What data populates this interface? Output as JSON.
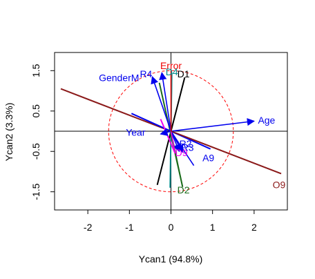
{
  "chart_data": {
    "type": "biplot",
    "xlabel": "Ycan1 (94.8%)",
    "ylabel": "Ycan2 (3.3%)",
    "xlim": [
      -2.8,
      2.8
    ],
    "ylim": [
      -1.95,
      1.95
    ],
    "xticks": [
      "-2",
      "-1",
      "0",
      "1",
      "2"
    ],
    "xtick_values": [
      -2,
      -1,
      0,
      1,
      2
    ],
    "yticks": [
      "-1.5",
      "-0.5",
      "0.5",
      "1.5"
    ],
    "ytick_values": [
      -1.5,
      -0.5,
      0.5,
      1.5
    ],
    "circle": {
      "center": [
        0,
        0
      ],
      "radius": 1.5,
      "color": "#ff0000",
      "style": "dashed"
    },
    "reference_lines": {
      "x": 0,
      "y": 0
    },
    "vectors": [
      {
        "label": "Age",
        "x": 2.0,
        "y": 0.25,
        "color": "#0000ee",
        "arrow": true
      },
      {
        "label": "Year",
        "x": -0.25,
        "y": -0.07,
        "color": "#0000ee",
        "arrow": true
      },
      {
        "label": "GenderM",
        "x": -0.45,
        "y": 1.35,
        "color": "#0000ee",
        "arrow": true
      },
      {
        "label": "R4",
        "x": -0.22,
        "y": 1.45,
        "color": "#0000ee",
        "arrow": true
      },
      {
        "label": "R2",
        "x": 0.28,
        "y": -0.52,
        "color": "#0000ee",
        "arrow": true
      },
      {
        "label": "R3",
        "x": 0.2,
        "y": -0.5,
        "color": "#0000ee",
        "arrow": true
      },
      {
        "label": "A9",
        "x": 0.55,
        "y": -0.85,
        "color": "#0000ee",
        "arrow": false
      },
      {
        "label": "D1",
        "x": 0.33,
        "y": 1.33,
        "color": "#000000",
        "arrow": false
      },
      {
        "label": "D4",
        "x": 0.02,
        "y": 1.45,
        "color": "#008b8b",
        "arrow": false
      },
      {
        "label": "D2",
        "x": 0.28,
        "y": -1.38,
        "color": "#1a6b1a",
        "arrow": false
      },
      {
        "label": "D9",
        "x": 0.1,
        "y": -0.55,
        "color": "#ee00ee",
        "arrow": false
      },
      {
        "label": "O9",
        "x": 2.65,
        "y": -1.05,
        "color": "#8b1a1a",
        "arrow": false
      },
      {
        "label": "Error",
        "x": 0.0,
        "y": 1.5,
        "color": "#ee0000",
        "arrow": false
      }
    ],
    "lines": [
      {
        "x1": -2.65,
        "y1": 1.05,
        "x2": 2.65,
        "y2": -1.05,
        "color": "#8b1a1a",
        "width": 2
      },
      {
        "x1": -0.33,
        "y1": -1.33,
        "x2": 0.33,
        "y2": 1.33,
        "color": "#000000",
        "width": 2
      },
      {
        "x1": -0.02,
        "y1": -1.4,
        "x2": 0.02,
        "y2": 1.45,
        "color": "#008b8b",
        "width": 2
      },
      {
        "x1": -0.28,
        "y1": 1.2,
        "x2": 0.28,
        "y2": -1.38,
        "color": "#1a6b1a",
        "width": 2
      },
      {
        "x1": -0.95,
        "y1": 0.44,
        "x2": 0.95,
        "y2": -0.44,
        "color": "#0000ee",
        "width": 2
      },
      {
        "x1": -0.25,
        "y1": 0.3,
        "x2": 0.1,
        "y2": -0.55,
        "color": "#ee00ee",
        "width": 2
      }
    ],
    "labels": [
      {
        "text": "Age",
        "x": 2.3,
        "y": 0.25,
        "color": "#0000ee"
      },
      {
        "text": "Year",
        "x": -0.85,
        "y": -0.05,
        "color": "#0000ee"
      },
      {
        "text": "GenderM",
        "x": -1.25,
        "y": 1.3,
        "color": "#0000ee"
      },
      {
        "text": "R4",
        "x": -0.6,
        "y": 1.4,
        "color": "#0000ee"
      },
      {
        "text": "Error",
        "x": 0.0,
        "y": 1.6,
        "color": "#ee0000"
      },
      {
        "text": "D4",
        "x": 0.02,
        "y": 1.45,
        "color": "#008b8b"
      },
      {
        "text": "D1",
        "x": 0.3,
        "y": 1.4,
        "color": "#000000"
      },
      {
        "text": "R2",
        "x": 0.35,
        "y": -0.33,
        "color": "#0000ee"
      },
      {
        "text": "R3",
        "x": 0.4,
        "y": -0.42,
        "color": "#0000ee"
      },
      {
        "text": "D9",
        "x": 0.25,
        "y": -0.55,
        "color": "#ee00ee"
      },
      {
        "text": "A9",
        "x": 0.9,
        "y": -0.68,
        "color": "#0000ee"
      },
      {
        "text": "D2",
        "x": 0.3,
        "y": -1.48,
        "color": "#1a6b1a"
      },
      {
        "text": "O9",
        "x": 2.6,
        "y": -1.35,
        "color": "#8b1a1a"
      }
    ],
    "grid": false,
    "legend": "none"
  }
}
